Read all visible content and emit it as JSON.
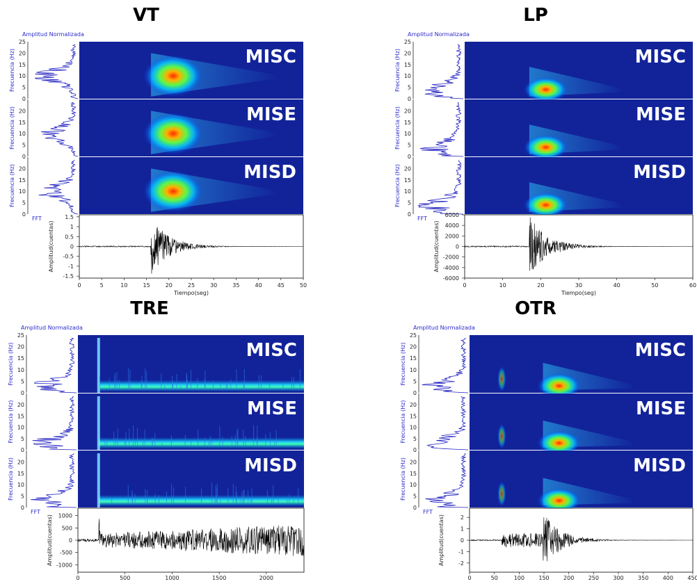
{
  "chart_data": [
    {
      "type": "heatmap",
      "title": "VT",
      "spectrum_label": "Amplitud Normalizada",
      "fft_label": "FFT",
      "freq_ylabel": "Frecuencia (Hz)",
      "freq_yticks": [
        0,
        5,
        10,
        15,
        20,
        25
      ],
      "stations": [
        "MISC",
        "MISE",
        "MISD"
      ],
      "xlabel": "Tiempo(seg)",
      "xticks": [
        0,
        5,
        10,
        15,
        20,
        25,
        30,
        35,
        40,
        45,
        50
      ],
      "xlim": [
        0,
        50
      ],
      "wave_ylabel": "Amplitud(cuentas)",
      "wave_yticks": [
        "1.5",
        "1",
        "0.5",
        "0",
        "-0.5",
        "-1",
        "-1.5"
      ],
      "wave_ylim": [
        -1.6,
        1.6
      ],
      "event_onset": 16,
      "event_peak_amplitude": 1.5,
      "dominant_freq_hz": 10
    },
    {
      "type": "heatmap",
      "title": "LP",
      "spectrum_label": "Amplitud Normalizada",
      "fft_label": "FFT",
      "freq_ylabel": "Frecuencia (Hz)",
      "freq_yticks": [
        0,
        5,
        10,
        15,
        20,
        25
      ],
      "stations": [
        "MISC",
        "MISE",
        "MISD"
      ],
      "xlabel": "Tiempo(seg)",
      "xticks": [
        0,
        10,
        20,
        30,
        40,
        50,
        60
      ],
      "xlim": [
        0,
        60
      ],
      "wave_ylabel": "Amplitud(cuentas)",
      "wave_yticks": [
        "6000",
        "4000",
        "2000",
        "0",
        "-2000",
        "-4000",
        "-6000"
      ],
      "wave_ylim": [
        -6000,
        6000
      ],
      "event_onset": 17,
      "event_peak_amplitude": 5800,
      "dominant_freq_hz": 4
    },
    {
      "type": "heatmap",
      "title": "TRE",
      "spectrum_label": "Amplitud Normalizada",
      "fft_label": "FFT",
      "freq_ylabel": "Frecuencia (Hz)",
      "freq_yticks": [
        0,
        5,
        10,
        15,
        20,
        25
      ],
      "stations": [
        "MISC",
        "MISE",
        "MISD"
      ],
      "xlabel": "",
      "xticks": [
        0,
        500,
        1000,
        1500,
        2000
      ],
      "xlim": [
        0,
        2400
      ],
      "wave_ylabel": "Amplitud(cuentas)",
      "wave_yticks": [
        "1000",
        "500",
        "0",
        "-500",
        "-1000"
      ],
      "wave_ylim": [
        -1300,
        1300
      ],
      "event_onset": 220,
      "event_peak_amplitude": 1100,
      "dominant_freq_hz": 3
    },
    {
      "type": "heatmap",
      "title": "OTR",
      "spectrum_label": "Amplitud Normalizada",
      "fft_label": "FFT",
      "freq_ylabel": "Frecuencia (Hz)",
      "freq_yticks": [
        0,
        5,
        10,
        15,
        20,
        25
      ],
      "stations": [
        "MISC",
        "MISE",
        "MISD"
      ],
      "xlabel": "",
      "xticks": [
        0,
        50,
        100,
        150,
        200,
        250,
        300,
        350,
        400,
        450
      ],
      "xlim": [
        0,
        450
      ],
      "wave_ylabel": "Amplitud(cuentas)",
      "wave_yticks": [
        "2",
        "1",
        "0",
        "-1",
        "-2"
      ],
      "wave_ylim": [
        -2.8,
        2.8
      ],
      "event_onset": 148,
      "event_peak_amplitude": 2.5,
      "dominant_freq_hz": 3
    }
  ]
}
